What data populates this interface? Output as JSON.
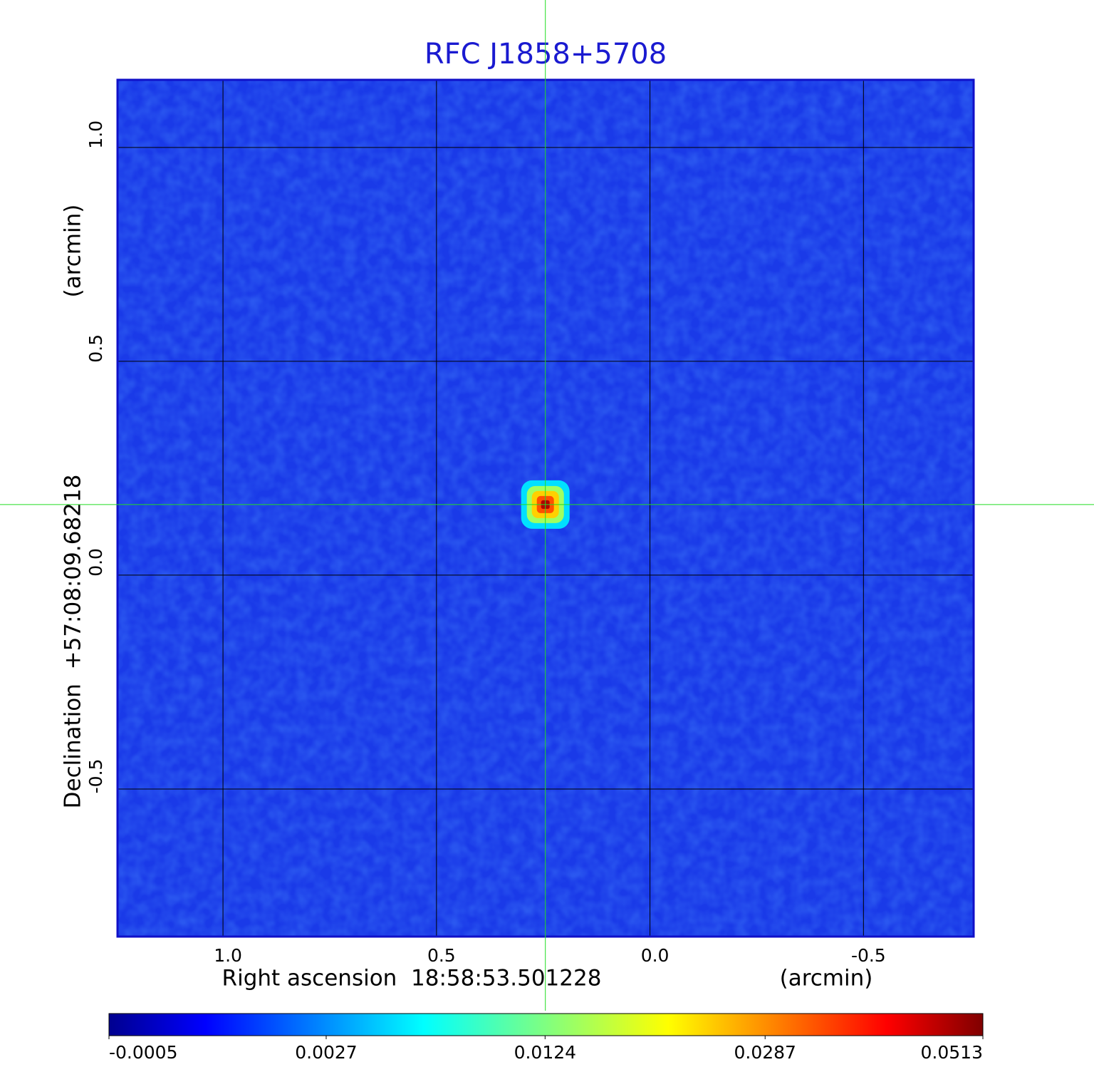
{
  "chart_data": {
    "type": "image",
    "title": "RFC J1858+5708",
    "x_label": "Right ascension  18:58:53.501228",
    "x_unit": "(arcmin)",
    "y_label": "Declination  +57:08:09.68218",
    "y_unit": "(arcmin)",
    "xlim": [
      1.247,
      -0.758
    ],
    "ylim": [
      -0.845,
      1.158
    ],
    "xticks": [
      {
        "value": 1,
        "label": "1.0"
      },
      0.5,
      {
        "value": 0,
        "label": "0.0"
      },
      -0.5
    ],
    "yticks": [
      {
        "value": 1,
        "label": "1.0"
      },
      0.5,
      {
        "value": 0,
        "label": "0.0"
      },
      -0.5
    ],
    "grid": true,
    "source": {
      "x": 0.245,
      "y": 0.165
    },
    "colorbar": {
      "lim": [
        -0.0005,
        0.0513
      ],
      "ticks": [
        -0.0005,
        0.0027,
        0.0124,
        0.0287,
        0.0513
      ],
      "scale": "sqrt",
      "colormap": "jet"
    }
  }
}
